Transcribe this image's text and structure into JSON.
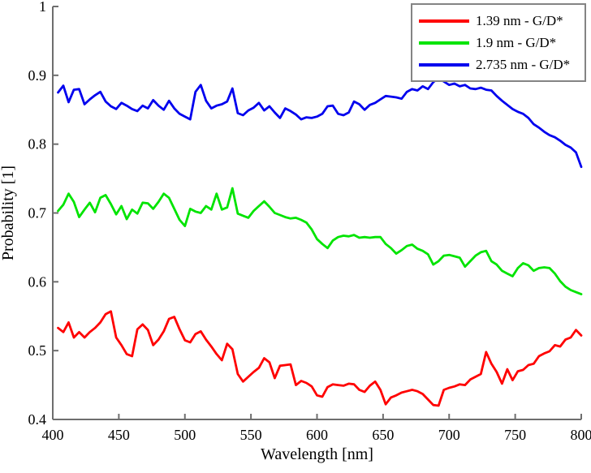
{
  "figure": {
    "background": "#ffffff",
    "axis_color": "#6e6e6e",
    "label_color": "#000000"
  },
  "chart_data": {
    "type": "line",
    "title": "",
    "xlabel": "Wavelength [nm]",
    "ylabel": "Probability [1]",
    "xlim": [
      400,
      800
    ],
    "ylim": [
      0.4,
      1.0
    ],
    "grid": false,
    "legend_position": "top-right",
    "x_ticks": [
      400,
      450,
      500,
      550,
      600,
      650,
      700,
      750,
      800
    ],
    "x_tick_labels": [
      "400",
      "450",
      "500",
      "550",
      "600",
      "650",
      "700",
      "750",
      "800"
    ],
    "y_ticks": [
      0.4,
      0.5,
      0.6,
      0.7,
      0.8,
      0.9,
      1.0
    ],
    "y_tick_labels": [
      "0.4",
      "0.5",
      "0.6",
      "0.7",
      "0.8",
      "0.9",
      "1"
    ],
    "x": [
      404,
      408,
      412,
      416,
      420,
      424,
      428,
      432,
      436,
      440,
      444,
      448,
      452,
      456,
      460,
      464,
      468,
      472,
      476,
      480,
      484,
      488,
      492,
      496,
      500,
      504,
      508,
      512,
      516,
      520,
      524,
      528,
      532,
      536,
      540,
      544,
      548,
      552,
      556,
      560,
      564,
      568,
      572,
      576,
      580,
      584,
      588,
      592,
      596,
      600,
      604,
      608,
      612,
      616,
      620,
      624,
      628,
      632,
      636,
      640,
      644,
      648,
      652,
      656,
      660,
      664,
      668,
      672,
      676,
      680,
      684,
      688,
      692,
      696,
      700,
      704,
      708,
      712,
      716,
      720,
      724,
      728,
      732,
      736,
      740,
      744,
      748,
      752,
      756,
      760,
      764,
      768,
      772,
      776,
      780,
      784,
      788,
      792,
      796,
      800
    ],
    "series": [
      {
        "name": "1.39 nm - G/D*",
        "color": "#ff0000",
        "values": [
          0.533,
          0.527,
          0.541,
          0.519,
          0.527,
          0.519,
          0.527,
          0.533,
          0.541,
          0.553,
          0.557,
          0.519,
          0.508,
          0.495,
          0.492,
          0.531,
          0.538,
          0.53,
          0.508,
          0.516,
          0.528,
          0.546,
          0.549,
          0.531,
          0.515,
          0.512,
          0.524,
          0.528,
          0.516,
          0.506,
          0.495,
          0.486,
          0.51,
          0.502,
          0.466,
          0.455,
          0.462,
          0.469,
          0.475,
          0.489,
          0.483,
          0.46,
          0.478,
          0.479,
          0.48,
          0.45,
          0.456,
          0.453,
          0.448,
          0.435,
          0.433,
          0.447,
          0.451,
          0.45,
          0.449,
          0.452,
          0.451,
          0.443,
          0.44,
          0.449,
          0.455,
          0.443,
          0.422,
          0.432,
          0.435,
          0.439,
          0.441,
          0.443,
          0.441,
          0.437,
          0.429,
          0.421,
          0.42,
          0.443,
          0.446,
          0.448,
          0.451,
          0.45,
          0.458,
          0.462,
          0.466,
          0.498,
          0.481,
          0.469,
          0.452,
          0.473,
          0.457,
          0.47,
          0.472,
          0.479,
          0.481,
          0.492,
          0.496,
          0.499,
          0.508,
          0.506,
          0.516,
          0.519,
          0.53,
          0.522
        ]
      },
      {
        "name": "1.9 nm - G/D*",
        "color": "#00e400",
        "values": [
          0.703,
          0.712,
          0.728,
          0.716,
          0.694,
          0.705,
          0.715,
          0.701,
          0.722,
          0.726,
          0.713,
          0.698,
          0.71,
          0.691,
          0.705,
          0.699,
          0.715,
          0.714,
          0.706,
          0.716,
          0.728,
          0.722,
          0.706,
          0.69,
          0.681,
          0.706,
          0.702,
          0.7,
          0.71,
          0.705,
          0.728,
          0.705,
          0.708,
          0.736,
          0.699,
          0.696,
          0.693,
          0.703,
          0.71,
          0.717,
          0.709,
          0.7,
          0.697,
          0.694,
          0.692,
          0.693,
          0.69,
          0.686,
          0.676,
          0.662,
          0.655,
          0.649,
          0.66,
          0.665,
          0.667,
          0.666,
          0.668,
          0.664,
          0.665,
          0.664,
          0.665,
          0.665,
          0.655,
          0.649,
          0.641,
          0.646,
          0.652,
          0.654,
          0.648,
          0.645,
          0.64,
          0.625,
          0.63,
          0.638,
          0.639,
          0.637,
          0.635,
          0.622,
          0.63,
          0.638,
          0.643,
          0.645,
          0.63,
          0.625,
          0.616,
          0.612,
          0.608,
          0.62,
          0.627,
          0.624,
          0.616,
          0.62,
          0.621,
          0.62,
          0.612,
          0.601,
          0.593,
          0.588,
          0.585,
          0.582
        ]
      },
      {
        "name": "2.735 nm - G/D*",
        "color": "#0000ee",
        "values": [
          0.875,
          0.885,
          0.861,
          0.879,
          0.88,
          0.858,
          0.865,
          0.871,
          0.876,
          0.862,
          0.855,
          0.851,
          0.86,
          0.856,
          0.851,
          0.848,
          0.856,
          0.852,
          0.864,
          0.856,
          0.85,
          0.863,
          0.852,
          0.844,
          0.84,
          0.836,
          0.876,
          0.886,
          0.863,
          0.852,
          0.856,
          0.858,
          0.862,
          0.881,
          0.845,
          0.842,
          0.849,
          0.853,
          0.86,
          0.849,
          0.855,
          0.846,
          0.838,
          0.852,
          0.848,
          0.843,
          0.836,
          0.839,
          0.838,
          0.84,
          0.844,
          0.855,
          0.856,
          0.844,
          0.842,
          0.846,
          0.862,
          0.858,
          0.85,
          0.857,
          0.86,
          0.865,
          0.87,
          0.869,
          0.868,
          0.866,
          0.876,
          0.88,
          0.878,
          0.884,
          0.88,
          0.89,
          0.896,
          0.891,
          0.886,
          0.888,
          0.884,
          0.886,
          0.881,
          0.88,
          0.882,
          0.879,
          0.878,
          0.87,
          0.863,
          0.857,
          0.851,
          0.847,
          0.844,
          0.838,
          0.829,
          0.824,
          0.818,
          0.813,
          0.81,
          0.805,
          0.799,
          0.795,
          0.788,
          0.767
        ]
      }
    ]
  },
  "legend": {
    "items": [
      {
        "label": "1.39 nm - G/D*",
        "color": "#ff0000"
      },
      {
        "label": "1.9 nm - G/D*",
        "color": "#00e400"
      },
      {
        "label": "2.735 nm - G/D*",
        "color": "#0000ee"
      }
    ]
  }
}
